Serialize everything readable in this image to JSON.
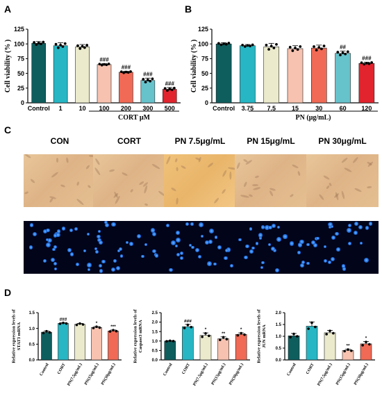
{
  "panel_letters": [
    "A",
    "B",
    "C",
    "D"
  ],
  "colors": {
    "A": [
      "#0e5e5e",
      "#27b6c4",
      "#ebeacc",
      "#f7c2b0",
      "#f06a55",
      "#66c3cc",
      "#e1242e"
    ],
    "B": [
      "#0e5e5e",
      "#27b6c4",
      "#ebeacc",
      "#f7c2b0",
      "#f06a55",
      "#66c3cc",
      "#e1242e"
    ],
    "D": [
      "#0e5e5e",
      "#27b6c4",
      "#ebeacc",
      "#f7c2b0",
      "#f06a55"
    ]
  },
  "images": {
    "labels": [
      "CON",
      "CORT",
      "PN 7.5μg/mL",
      "PN 15μg/mL",
      "PN 30μg/mL"
    ]
  },
  "chart_data": [
    {
      "id": "A",
      "type": "bar",
      "categories": [
        "Control",
        "1",
        "10",
        "100",
        "200",
        "300",
        "500"
      ],
      "values": [
        101,
        97,
        95,
        65,
        52,
        38,
        23
      ],
      "errors": [
        3,
        5,
        4,
        1.5,
        1.5,
        4,
        3
      ],
      "annotations": [
        "",
        "",
        "",
        "###",
        "###",
        "###",
        "###"
      ],
      "ylabel": "Cell viability (% )",
      "xlabel": "CORT μM",
      "ylim": [
        0,
        125
      ],
      "yticks": [
        0,
        25,
        50,
        75,
        100,
        125
      ]
    },
    {
      "id": "B",
      "type": "bar",
      "categories": [
        "Control",
        "3.75",
        "7.5",
        "15",
        "30",
        "60",
        "120"
      ],
      "values": [
        100,
        97,
        95,
        92,
        93,
        84,
        67
      ],
      "errors": [
        2,
        2,
        6,
        5,
        5,
        4,
        2
      ],
      "annotations": [
        "",
        "",
        "",
        "",
        "",
        "##",
        "###"
      ],
      "ylabel": "Cell viability (% )",
      "xlabel": "PN (μg/mL)",
      "ylim": [
        0,
        125
      ],
      "yticks": [
        0,
        25,
        50,
        75,
        100,
        125
      ]
    },
    {
      "id": "D1",
      "type": "bar",
      "categories": [
        "Control",
        "CORT",
        "PN(7.5μg/mL)",
        "PN(15μg/mL)",
        "PN(30μg/mL)"
      ],
      "values": [
        0.88,
        1.16,
        1.13,
        1.03,
        0.92
      ],
      "errors": [
        0.04,
        0.02,
        0.03,
        0.03,
        0.03
      ],
      "annotations": [
        "",
        "###",
        "",
        "*",
        "***"
      ],
      "ylabel": "Relative expression levels of STAT3 mRNA",
      "ylim": [
        0,
        1.5
      ],
      "yticks": [
        0.0,
        0.5,
        1.0,
        1.5
      ]
    },
    {
      "id": "D2",
      "type": "bar",
      "categories": [
        "Control",
        "CORT",
        "PN(7.5μg/mL)",
        "PN(15μg/mL)",
        "PN(30μg/mL)"
      ],
      "values": [
        1.0,
        1.76,
        1.3,
        1.12,
        1.35
      ],
      "errors": [
        0.02,
        0.12,
        0.13,
        0.1,
        0.08
      ],
      "annotations": [
        "",
        "###",
        "*",
        "**",
        "*"
      ],
      "ylabel": "Relative expression levels of Caspase3 mRNA",
      "ylim": [
        0,
        2.5
      ],
      "yticks": [
        0.0,
        0.5,
        1.0,
        1.5,
        2.0,
        2.5
      ]
    },
    {
      "id": "D3",
      "type": "bar",
      "categories": [
        "Control",
        "CORT",
        "PN(7.5μg/mL)",
        "PN(15μg/mL)",
        "PN(30μg/mL)"
      ],
      "values": [
        1.02,
        1.43,
        1.15,
        0.4,
        0.68
      ],
      "errors": [
        0.1,
        0.18,
        0.1,
        0.05,
        0.1
      ],
      "annotations": [
        "",
        "",
        "",
        "**",
        "*"
      ],
      "ylabel": "Relative expression levels of JUN mRNA",
      "ylim": [
        0,
        2.0
      ],
      "yticks": [
        0.0,
        0.5,
        1.0,
        1.5,
        2.0
      ]
    }
  ]
}
